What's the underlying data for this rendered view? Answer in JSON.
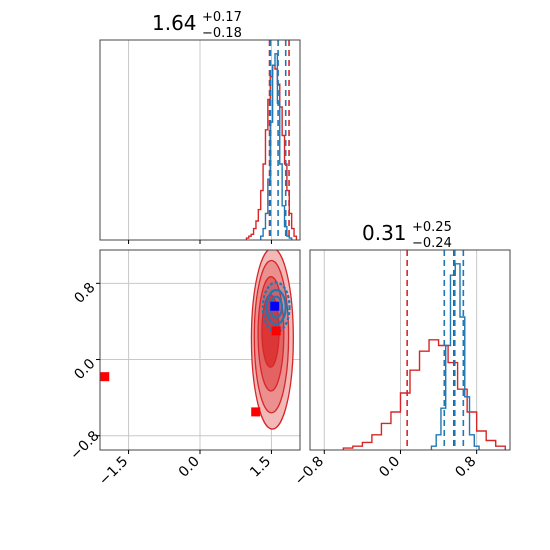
{
  "chart_data": {
    "type": "corner",
    "colors": {
      "red": "#d62728",
      "blue": "#1f77b4",
      "marker_red": "#ff0000",
      "marker_blue": "#0000ff",
      "grid": "#c8c8c8",
      "frame": "#444444"
    },
    "panels": {
      "p1_hist": {
        "parameter": "p1",
        "title": {
          "median": "1.64",
          "plus": "+0.17",
          "minus": "−0.18"
        },
        "xlim": [
          -2.1,
          2.1
        ],
        "red_quantiles": [
          1.46,
          1.87
        ],
        "blue_quantiles": [
          1.48,
          1.64,
          1.8
        ],
        "series": [
          {
            "color": "red",
            "x": [
              1.0,
              1.05,
              1.1,
              1.15,
              1.2,
              1.25,
              1.3,
              1.35,
              1.4,
              1.45,
              1.5,
              1.55,
              1.6,
              1.65,
              1.7,
              1.75,
              1.8,
              1.85,
              1.9,
              1.95,
              2.0
            ],
            "y": [
              0.01,
              0.02,
              0.03,
              0.06,
              0.1,
              0.16,
              0.26,
              0.4,
              0.58,
              0.74,
              0.86,
              0.92,
              0.9,
              0.82,
              0.7,
              0.55,
              0.4,
              0.26,
              0.14,
              0.06,
              0.02
            ]
          },
          {
            "color": "blue",
            "x": [
              1.3,
              1.35,
              1.4,
              1.45,
              1.5,
              1.55,
              1.6,
              1.65,
              1.7,
              1.75,
              1.8,
              1.85,
              1.9
            ],
            "y": [
              0.02,
              0.06,
              0.14,
              0.32,
              0.62,
              0.92,
              0.98,
              0.72,
              0.4,
              0.18,
              0.07,
              0.02,
              0.01
            ]
          }
        ]
      },
      "scatter_2d": {
        "xlim": [
          -2.1,
          2.1
        ],
        "ylim": [
          -0.95,
          1.15
        ],
        "x_ticks": [
          "−1.5",
          "0.0",
          "1.5"
        ],
        "x_tick_values": [
          -1.5,
          0.0,
          1.5
        ],
        "y_ticks": [
          "−0.8",
          "0.0",
          "0.8"
        ],
        "y_tick_values": [
          -0.8,
          0.0,
          0.8
        ],
        "markers": [
          {
            "color": "marker_red",
            "x": -2.0,
            "y": -0.18
          },
          {
            "color": "marker_red",
            "x": 1.17,
            "y": -0.55
          },
          {
            "color": "marker_red",
            "x": 1.6,
            "y": 0.3
          },
          {
            "color": "marker_blue",
            "x": 1.57,
            "y": 0.56
          }
        ],
        "red_contours": [
          {
            "cx": 1.52,
            "cy": 0.22,
            "rx": 0.44,
            "ry": 0.95
          },
          {
            "cx": 1.5,
            "cy": 0.24,
            "rx": 0.36,
            "ry": 0.8
          },
          {
            "cx": 1.49,
            "cy": 0.27,
            "rx": 0.27,
            "ry": 0.6
          },
          {
            "cx": 1.48,
            "cy": 0.3,
            "rx": 0.18,
            "ry": 0.38
          }
        ],
        "blue_contours": [
          {
            "cx": 1.6,
            "cy": 0.55,
            "rx": 0.28,
            "ry": 0.26
          },
          {
            "cx": 1.6,
            "cy": 0.55,
            "rx": 0.2,
            "ry": 0.18
          },
          {
            "cx": 1.6,
            "cy": 0.55,
            "rx": 0.12,
            "ry": 0.11
          }
        ]
      },
      "p2_hist": {
        "parameter": "p2",
        "title": {
          "median": "0.31",
          "plus": "+0.25",
          "minus": "−0.24"
        },
        "xlim": [
          -0.95,
          1.15
        ],
        "x_ticks": [
          "−0.8",
          "0.0",
          "0.8"
        ],
        "x_tick_values": [
          -0.8,
          0.0,
          0.8
        ],
        "red_quantiles": [
          0.07,
          0.56
        ],
        "blue_quantiles": [
          0.46,
          0.57,
          0.66
        ],
        "series": [
          {
            "color": "red",
            "x": [
              -0.55,
              -0.45,
              -0.35,
              -0.25,
              -0.15,
              -0.05,
              0.05,
              0.15,
              0.25,
              0.35,
              0.45,
              0.55,
              0.65,
              0.75,
              0.85,
              0.95,
              1.05
            ],
            "y": [
              0.01,
              0.02,
              0.04,
              0.08,
              0.14,
              0.2,
              0.3,
              0.42,
              0.52,
              0.58,
              0.55,
              0.46,
              0.32,
              0.2,
              0.1,
              0.05,
              0.02
            ]
          },
          {
            "color": "blue",
            "x": [
              0.35,
              0.4,
              0.45,
              0.5,
              0.55,
              0.6,
              0.65,
              0.7,
              0.75,
              0.8
            ],
            "y": [
              0.02,
              0.08,
              0.22,
              0.55,
              0.92,
              0.98,
              0.7,
              0.28,
              0.08,
              0.02
            ]
          }
        ]
      }
    }
  }
}
